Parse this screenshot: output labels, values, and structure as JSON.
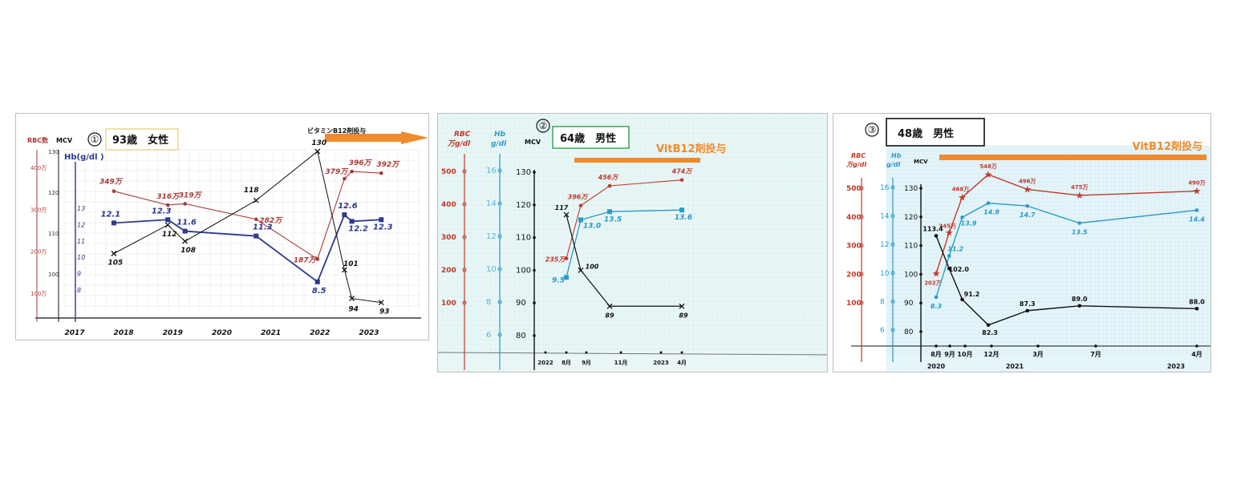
{
  "chart_data": [
    {
      "type": "line",
      "badge_number": "①",
      "title": "93歳　女性",
      "treatment_label": "ビタミンB12剤投与",
      "axis_labels": {
        "rbc": "RBC数",
        "mcv": "MCV",
        "hb": "Hb(g/dl )"
      },
      "rbc_ticks": [
        "400万",
        "300万",
        "200万",
        "100万"
      ],
      "mcv_ticks": [
        "130",
        "120",
        "110",
        "100"
      ],
      "hb_ticks": [
        "13",
        "12",
        "11",
        "10",
        "9",
        "8"
      ],
      "year_labels": [
        "2017",
        "2018",
        "2019",
        "2020",
        "2021",
        "2022",
        "2023"
      ],
      "series": [
        {
          "key": "rbc",
          "color": "#a83a3a",
          "x": [
            2017.8,
            2018.9,
            2019.25,
            2020.7,
            2021.95,
            2022.5,
            2022.65,
            2023.25
          ],
          "values": [
            349,
            316,
            319,
            282,
            187,
            379,
            396,
            392
          ],
          "labels": [
            "349万",
            "316万",
            "319万",
            "282万",
            "187万",
            "379万",
            "396万",
            "392万"
          ]
        },
        {
          "key": "hb",
          "color": "#2e3a8c",
          "x": [
            2017.8,
            2018.9,
            2019.25,
            2020.7,
            2021.95,
            2022.5,
            2022.65,
            2023.25
          ],
          "values": [
            12.1,
            12.3,
            11.6,
            11.3,
            8.5,
            12.6,
            12.2,
            12.3
          ],
          "labels": [
            "12.1",
            "12.3",
            "11.6",
            "11.3",
            "8.5",
            "12.6",
            "12.2",
            "12.3"
          ]
        },
        {
          "key": "mcv",
          "color": "#111111",
          "x": [
            2017.8,
            2018.9,
            2019.25,
            2020.7,
            2021.95,
            2022.5,
            2022.65,
            2023.25
          ],
          "values": [
            105,
            112,
            108,
            118,
            130,
            101,
            94,
            93
          ],
          "labels": [
            "105",
            "112",
            "108",
            "118",
            "130",
            "101",
            "94",
            "93"
          ]
        }
      ]
    },
    {
      "type": "line",
      "badge_number": "②",
      "title": "64歳　男性",
      "treatment_label": "VitB12剤投与",
      "axis_labels": {
        "rbc": "RBC\n万g/dl",
        "hb": "Hb\ng/dl",
        "mcv": "MCV"
      },
      "rbc_ticks": [
        "500",
        "400",
        "300",
        "200",
        "100"
      ],
      "hb_ticks": [
        "16",
        "14",
        "12",
        "10",
        "8",
        "6"
      ],
      "mcv_ticks": [
        "130",
        "120",
        "110",
        "100",
        "90",
        "80"
      ],
      "x_labels": [
        "2022",
        "8月",
        "9月",
        "11月",
        "2023",
        "4月"
      ],
      "series": [
        {
          "key": "rbc",
          "color": "#c0392b",
          "x": [
            0,
            1,
            3,
            8
          ],
          "values": [
            235,
            396,
            456,
            474
          ],
          "labels": [
            "235万",
            "396万",
            "456万",
            "474万"
          ]
        },
        {
          "key": "hb",
          "color": "#2a9bc7",
          "x": [
            0,
            1,
            3,
            8
          ],
          "values": [
            9.5,
            13.0,
            13.5,
            13.6
          ],
          "labels": [
            "9.5",
            "13.0",
            "13.5",
            "13.6"
          ]
        },
        {
          "key": "mcv",
          "color": "#111111",
          "x": [
            0,
            1,
            3,
            8
          ],
          "values": [
            117,
            100,
            89,
            89
          ],
          "labels": [
            "117",
            "100",
            "89",
            "89"
          ]
        }
      ]
    },
    {
      "type": "line",
      "badge_number": "③",
      "title": "48歳　男性",
      "treatment_label": "VitB12剤投与",
      "axis_labels": {
        "rbc": "RBC\n万g/dl",
        "hb": "Hb\ng/dl",
        "mcv": "MCV"
      },
      "rbc_ticks": [
        "500",
        "400",
        "300",
        "200",
        "100"
      ],
      "hb_ticks": [
        "16",
        "14",
        "12",
        "10",
        "8",
        "6"
      ],
      "mcv_ticks": [
        "130",
        "120",
        "110",
        "100",
        "90",
        "80"
      ],
      "x_labels": [
        "8月",
        "9月",
        "10月",
        "12月",
        "3月",
        "7月",
        "4月"
      ],
      "year_labels": [
        "2020",
        "2021",
        "2023"
      ],
      "series": [
        {
          "key": "rbc",
          "color": "#c0392b",
          "x": [
            0,
            1,
            2,
            4,
            7,
            11,
            20
          ],
          "values": [
            202,
            345,
            468,
            548,
            496,
            475,
            490
          ],
          "labels": [
            "202万",
            "345万",
            "468万",
            "548万",
            "496万",
            "475万",
            "490万"
          ]
        },
        {
          "key": "hb",
          "color": "#2a9bc7",
          "x": [
            0,
            1,
            2,
            4,
            7,
            11,
            20
          ],
          "values": [
            8.3,
            11.2,
            13.9,
            14.9,
            14.7,
            13.5,
            14.4
          ],
          "labels": [
            "8.3",
            "11.2",
            "13.9",
            "14.9",
            "14.7",
            "13.5",
            "14.4"
          ]
        },
        {
          "key": "mcv",
          "color": "#111111",
          "x": [
            0,
            1,
            2,
            4,
            7,
            11,
            20
          ],
          "values": [
            113.4,
            102.0,
            91.2,
            82.3,
            87.3,
            89.0,
            88.0
          ],
          "labels": [
            "113.4",
            "102.0",
            "91.2",
            "82.3",
            "87.3",
            "89.0",
            "88.0"
          ]
        }
      ]
    }
  ]
}
